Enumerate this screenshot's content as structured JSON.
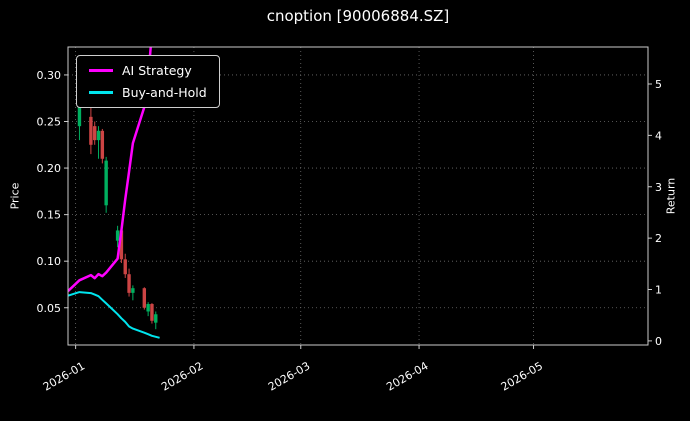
{
  "chart_data": {
    "type": "candlestick",
    "title": "cnoption [90006884.SZ]",
    "ylabel_left": "Price",
    "ylabel_right": "Return",
    "x_range": [
      "2025-12-30",
      "2026-05-31"
    ],
    "price_lim": [
      0.01,
      0.33
    ],
    "return_lim": [
      -0.08,
      5.72
    ],
    "grid": true,
    "legend_position": "upper left",
    "price_ticks": [
      {
        "v": 0.05,
        "label": "0.05"
      },
      {
        "v": 0.1,
        "label": "0.10"
      },
      {
        "v": 0.15,
        "label": "0.15"
      },
      {
        "v": 0.2,
        "label": "0.20"
      },
      {
        "v": 0.25,
        "label": "0.25"
      },
      {
        "v": 0.3,
        "label": "0.30"
      }
    ],
    "return_ticks": [
      {
        "v": 0,
        "label": "0"
      },
      {
        "v": 1,
        "label": "1"
      },
      {
        "v": 2,
        "label": "2"
      },
      {
        "v": 3,
        "label": "3"
      },
      {
        "v": 4,
        "label": "4"
      },
      {
        "v": 5,
        "label": "5"
      }
    ],
    "x_ticks": [
      {
        "date": "2026-01-01",
        "label": "2026-01"
      },
      {
        "date": "2026-02-01",
        "label": "2026-02"
      },
      {
        "date": "2026-03-01",
        "label": "2026-03"
      },
      {
        "date": "2026-04-01",
        "label": "2026-04"
      },
      {
        "date": "2026-05-01",
        "label": "2026-05"
      }
    ],
    "candles": [
      {
        "date": "2026-01-02",
        "o": 0.245,
        "h": 0.3,
        "l": 0.23,
        "c": 0.285
      },
      {
        "date": "2026-01-05",
        "o": 0.255,
        "h": 0.265,
        "l": 0.215,
        "c": 0.225
      },
      {
        "date": "2026-01-06",
        "o": 0.245,
        "h": 0.25,
        "l": 0.225,
        "c": 0.23
      },
      {
        "date": "2026-01-07",
        "o": 0.23,
        "h": 0.245,
        "l": 0.21,
        "c": 0.24
      },
      {
        "date": "2026-01-08",
        "o": 0.24,
        "h": 0.242,
        "l": 0.205,
        "c": 0.21
      },
      {
        "date": "2026-01-09",
        "o": 0.16,
        "h": 0.212,
        "l": 0.152,
        "c": 0.208
      },
      {
        "date": "2026-01-12",
        "o": 0.122,
        "h": 0.138,
        "l": 0.115,
        "c": 0.133
      },
      {
        "date": "2026-01-13",
        "o": 0.133,
        "h": 0.135,
        "l": 0.098,
        "c": 0.102
      },
      {
        "date": "2026-01-14",
        "o": 0.102,
        "h": 0.108,
        "l": 0.082,
        "c": 0.086
      },
      {
        "date": "2026-01-15",
        "o": 0.086,
        "h": 0.092,
        "l": 0.062,
        "c": 0.066
      },
      {
        "date": "2026-01-16",
        "o": 0.066,
        "h": 0.074,
        "l": 0.058,
        "c": 0.071
      },
      {
        "date": "2026-01-19",
        "o": 0.071,
        "h": 0.072,
        "l": 0.048,
        "c": 0.05
      },
      {
        "date": "2026-01-20",
        "o": 0.046,
        "h": 0.056,
        "l": 0.041,
        "c": 0.054
      },
      {
        "date": "2026-01-21",
        "o": 0.054,
        "h": 0.055,
        "l": 0.033,
        "c": 0.036
      },
      {
        "date": "2026-01-22",
        "o": 0.034,
        "h": 0.046,
        "l": 0.027,
        "c": 0.043
      }
    ],
    "series": [
      {
        "name": "AI Strategy",
        "color": "#ff00ff",
        "axis": "return",
        "width": 2.5,
        "points": [
          [
            "2025-12-30",
            0.97
          ],
          [
            "2026-01-02",
            1.18
          ],
          [
            "2026-01-05",
            1.28
          ],
          [
            "2026-01-06",
            1.22
          ],
          [
            "2026-01-07",
            1.3
          ],
          [
            "2026-01-08",
            1.26
          ],
          [
            "2026-01-09",
            1.33
          ],
          [
            "2026-01-12",
            1.6
          ],
          [
            "2026-01-13",
            2.15
          ],
          [
            "2026-01-14",
            2.75
          ],
          [
            "2026-01-15",
            3.3
          ],
          [
            "2026-01-16",
            3.85
          ],
          [
            "2026-01-19",
            4.55
          ],
          [
            "2026-01-20",
            5.1
          ],
          [
            "2026-01-21",
            6.0
          ]
        ]
      },
      {
        "name": "Buy-and-Hold",
        "color": "#00e5ee",
        "axis": "return",
        "width": 2,
        "points": [
          [
            "2025-12-30",
            0.88
          ],
          [
            "2026-01-02",
            0.95
          ],
          [
            "2026-01-05",
            0.93
          ],
          [
            "2026-01-06",
            0.9
          ],
          [
            "2026-01-07",
            0.87
          ],
          [
            "2026-01-08",
            0.8
          ],
          [
            "2026-01-09",
            0.73
          ],
          [
            "2026-01-12",
            0.52
          ],
          [
            "2026-01-13",
            0.44
          ],
          [
            "2026-01-14",
            0.37
          ],
          [
            "2026-01-15",
            0.28
          ],
          [
            "2026-01-16",
            0.24
          ],
          [
            "2026-01-19",
            0.16
          ],
          [
            "2026-01-20",
            0.13
          ],
          [
            "2026-01-21",
            0.1
          ],
          [
            "2026-01-22",
            0.08
          ],
          [
            "2026-01-23",
            0.06
          ]
        ]
      }
    ],
    "colors": {
      "background": "#000000",
      "text": "#ffffff",
      "axes": "#cccccc",
      "grid": "#6e6e6e",
      "up": "#00b060",
      "down": "#cc4444"
    }
  }
}
